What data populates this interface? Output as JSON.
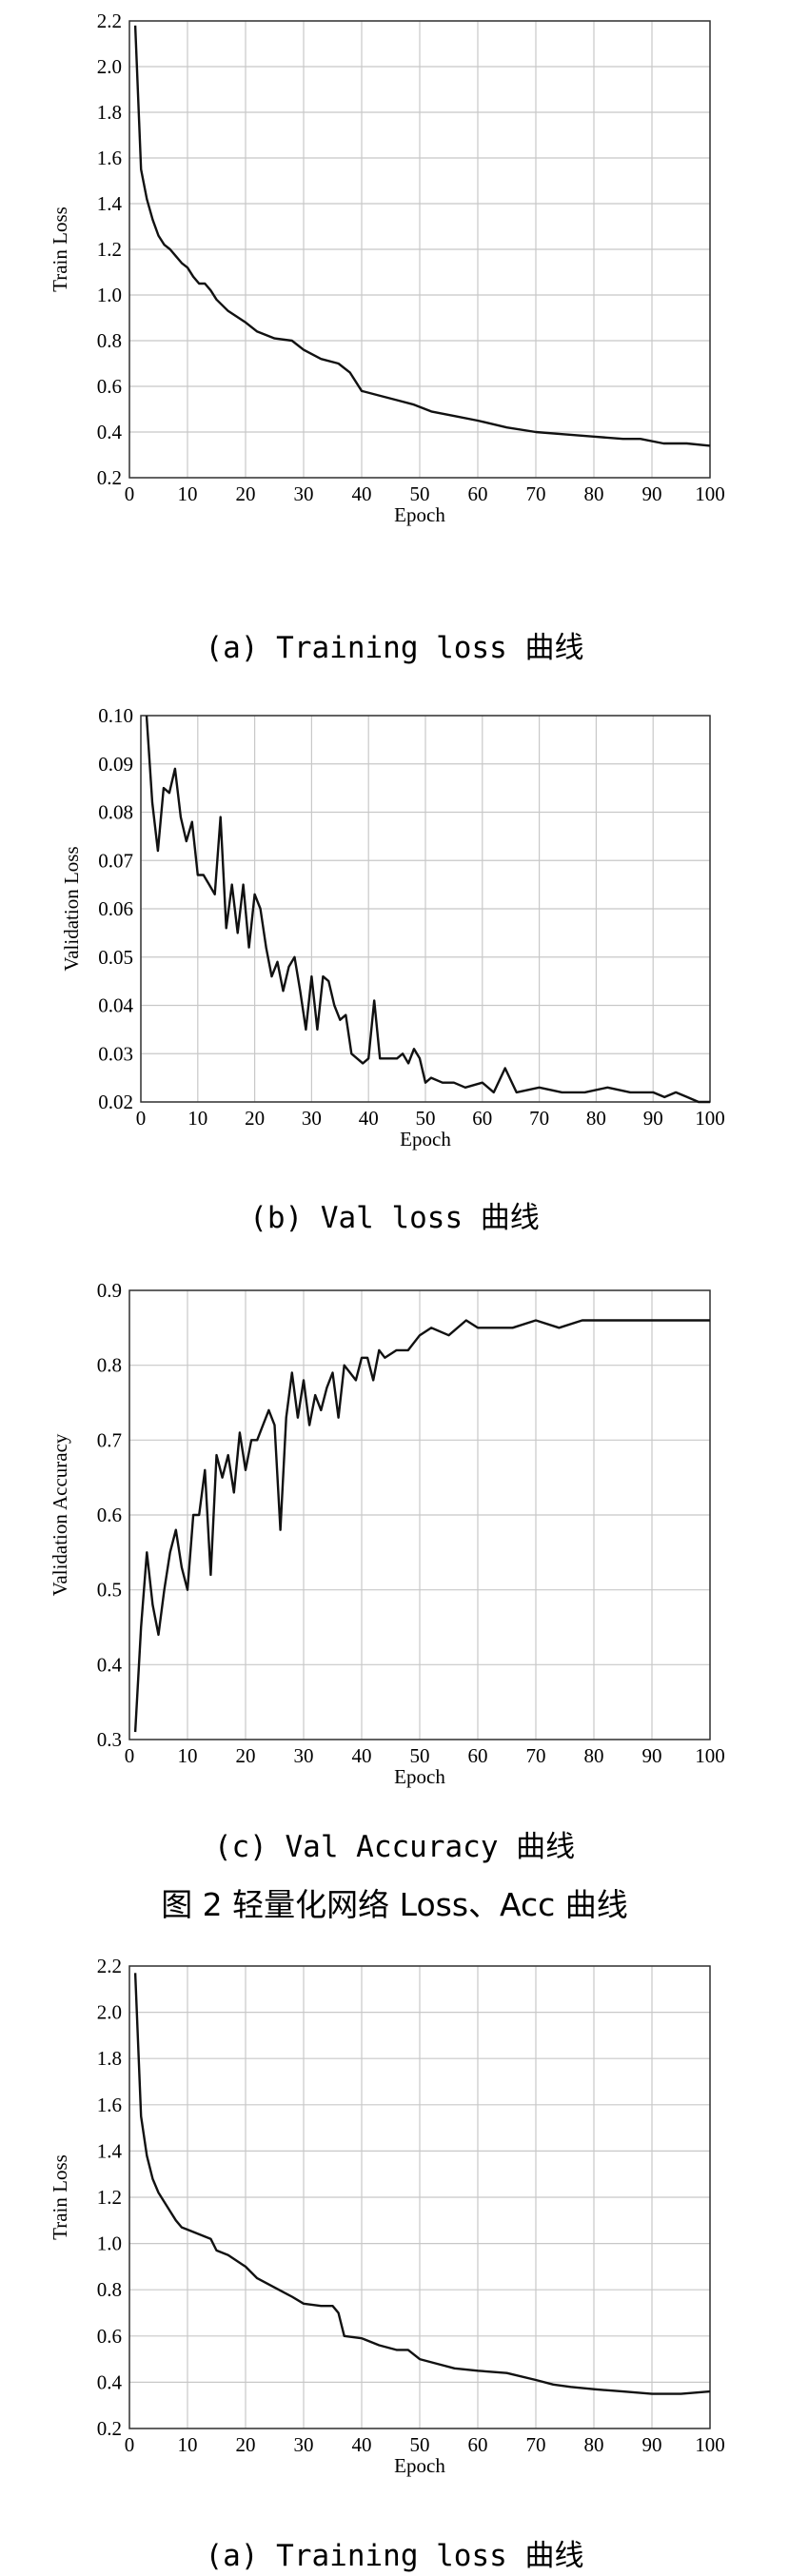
{
  "figure_title": "图 2 轻量化网络 Loss、Acc 曲线",
  "captions": [
    "(a) Training loss 曲线",
    "(b) Val loss 曲线",
    "(c) Val Accuracy 曲线",
    "(a) Training loss 曲线"
  ],
  "colors": {
    "line": "#111111",
    "grid": "#c8c8c8",
    "frame": "#333333"
  },
  "chart_data": [
    {
      "type": "line",
      "title": "",
      "xlabel": "Epoch",
      "ylabel": "Train Loss",
      "xlim": [
        0,
        100
      ],
      "ylim": [
        0.2,
        2.2
      ],
      "xticks": [
        0,
        10,
        20,
        30,
        40,
        50,
        60,
        70,
        80,
        90,
        100
      ],
      "yticks": [
        0.2,
        0.4,
        0.6,
        0.8,
        1.0,
        1.2,
        1.4,
        1.6,
        1.8,
        2.0,
        2.2
      ],
      "ytick_decimals": 1,
      "grid": true,
      "x": [
        1,
        2,
        3,
        4,
        5,
        6,
        7,
        8,
        9,
        10,
        11,
        12,
        13,
        14,
        15,
        17,
        20,
        22,
        25,
        28,
        30,
        33,
        36,
        38,
        40,
        43,
        46,
        49,
        52,
        56,
        60,
        65,
        70,
        75,
        80,
        85,
        88,
        92,
        96,
        100
      ],
      "values": [
        2.18,
        1.55,
        1.42,
        1.33,
        1.26,
        1.22,
        1.2,
        1.17,
        1.14,
        1.12,
        1.08,
        1.05,
        1.05,
        1.02,
        0.98,
        0.93,
        0.88,
        0.84,
        0.81,
        0.8,
        0.76,
        0.72,
        0.7,
        0.66,
        0.58,
        0.56,
        0.54,
        0.52,
        0.49,
        0.47,
        0.45,
        0.42,
        0.4,
        0.39,
        0.38,
        0.37,
        0.37,
        0.35,
        0.35,
        0.34
      ]
    },
    {
      "type": "line",
      "title": "",
      "xlabel": "Epoch",
      "ylabel": "Validation Loss",
      "xlim": [
        0,
        100
      ],
      "ylim": [
        0.02,
        0.1
      ],
      "xticks": [
        0,
        10,
        20,
        30,
        40,
        50,
        60,
        70,
        80,
        90,
        100
      ],
      "yticks": [
        0.02,
        0.03,
        0.04,
        0.05,
        0.06,
        0.07,
        0.08,
        0.09,
        0.1
      ],
      "ytick_decimals": 2,
      "grid": true,
      "x": [
        1,
        2,
        3,
        4,
        5,
        6,
        7,
        8,
        9,
        10,
        11,
        12,
        13,
        14,
        15,
        16,
        17,
        18,
        19,
        20,
        21,
        22,
        23,
        24,
        25,
        26,
        27,
        28,
        29,
        30,
        31,
        32,
        33,
        34,
        35,
        36,
        37,
        38,
        39,
        40,
        41,
        42,
        43,
        44,
        45,
        46,
        47,
        48,
        49,
        50,
        51,
        53,
        55,
        57,
        60,
        62,
        64,
        66,
        70,
        74,
        78,
        82,
        86,
        90,
        92,
        94,
        96,
        98,
        100
      ],
      "values": [
        0.1,
        0.082,
        0.072,
        0.085,
        0.084,
        0.089,
        0.079,
        0.074,
        0.078,
        0.067,
        0.067,
        0.065,
        0.063,
        0.079,
        0.056,
        0.065,
        0.055,
        0.065,
        0.052,
        0.063,
        0.06,
        0.052,
        0.046,
        0.049,
        0.043,
        0.048,
        0.05,
        0.043,
        0.035,
        0.046,
        0.035,
        0.046,
        0.045,
        0.04,
        0.037,
        0.038,
        0.03,
        0.029,
        0.028,
        0.029,
        0.041,
        0.029,
        0.029,
        0.029,
        0.029,
        0.03,
        0.028,
        0.031,
        0.029,
        0.024,
        0.025,
        0.024,
        0.024,
        0.023,
        0.024,
        0.022,
        0.027,
        0.022,
        0.023,
        0.022,
        0.022,
        0.023,
        0.022,
        0.022,
        0.021,
        0.022,
        0.021,
        0.02,
        0.02
      ]
    },
    {
      "type": "line",
      "title": "",
      "xlabel": "Epoch",
      "ylabel": "Validation Accuracy",
      "xlim": [
        0,
        100
      ],
      "ylim": [
        0.3,
        0.9
      ],
      "xticks": [
        0,
        10,
        20,
        30,
        40,
        50,
        60,
        70,
        80,
        90,
        100
      ],
      "yticks": [
        0.3,
        0.4,
        0.5,
        0.6,
        0.7,
        0.8,
        0.9
      ],
      "ytick_decimals": 1,
      "grid": true,
      "x": [
        1,
        2,
        3,
        4,
        5,
        6,
        7,
        8,
        9,
        10,
        11,
        12,
        13,
        14,
        15,
        16,
        17,
        18,
        19,
        20,
        21,
        22,
        23,
        24,
        25,
        26,
        27,
        28,
        29,
        30,
        31,
        32,
        33,
        34,
        35,
        36,
        37,
        38,
        39,
        40,
        41,
        42,
        43,
        44,
        46,
        48,
        50,
        52,
        55,
        58,
        60,
        63,
        66,
        70,
        74,
        78,
        82,
        86,
        90,
        94,
        97,
        100
      ],
      "values": [
        0.31,
        0.45,
        0.55,
        0.48,
        0.44,
        0.5,
        0.55,
        0.58,
        0.53,
        0.5,
        0.6,
        0.6,
        0.66,
        0.52,
        0.68,
        0.65,
        0.68,
        0.63,
        0.71,
        0.66,
        0.7,
        0.7,
        0.72,
        0.74,
        0.72,
        0.58,
        0.73,
        0.79,
        0.73,
        0.78,
        0.72,
        0.76,
        0.74,
        0.77,
        0.79,
        0.73,
        0.8,
        0.79,
        0.78,
        0.81,
        0.81,
        0.78,
        0.82,
        0.81,
        0.82,
        0.82,
        0.84,
        0.85,
        0.84,
        0.86,
        0.85,
        0.85,
        0.85,
        0.86,
        0.85,
        0.86,
        0.86,
        0.86,
        0.86,
        0.86,
        0.86,
        0.86
      ]
    },
    {
      "type": "line",
      "title": "",
      "xlabel": "Epoch",
      "ylabel": "Train Loss",
      "xlim": [
        0,
        100
      ],
      "ylim": [
        0.2,
        2.2
      ],
      "xticks": [
        0,
        10,
        20,
        30,
        40,
        50,
        60,
        70,
        80,
        90,
        100
      ],
      "yticks": [
        0.2,
        0.4,
        0.6,
        0.8,
        1.0,
        1.2,
        1.4,
        1.6,
        1.8,
        2.0,
        2.2
      ],
      "ytick_decimals": 1,
      "grid": true,
      "x": [
        1,
        2,
        3,
        4,
        5,
        6,
        7,
        8,
        9,
        10,
        12,
        14,
        15,
        17,
        20,
        22,
        25,
        28,
        30,
        33,
        35,
        36,
        37,
        40,
        43,
        46,
        48,
        50,
        53,
        56,
        60,
        65,
        70,
        73,
        76,
        80,
        85,
        90,
        95,
        100
      ],
      "values": [
        2.17,
        1.55,
        1.38,
        1.28,
        1.22,
        1.18,
        1.14,
        1.1,
        1.07,
        1.06,
        1.04,
        1.02,
        0.97,
        0.95,
        0.9,
        0.85,
        0.81,
        0.77,
        0.74,
        0.73,
        0.73,
        0.7,
        0.6,
        0.59,
        0.56,
        0.54,
        0.54,
        0.5,
        0.48,
        0.46,
        0.45,
        0.44,
        0.41,
        0.39,
        0.38,
        0.37,
        0.36,
        0.35,
        0.35,
        0.36
      ]
    }
  ]
}
